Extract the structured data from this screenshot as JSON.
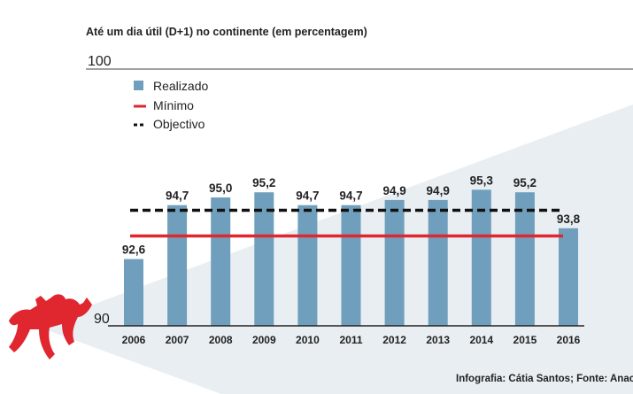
{
  "chart_data": {
    "type": "bar",
    "subtitle": "Até um dia útil (D+1) no continente (em percentagem)",
    "categories": [
      "2006",
      "2007",
      "2008",
      "2009",
      "2010",
      "2011",
      "2012",
      "2013",
      "2014",
      "2015",
      "2016"
    ],
    "series": [
      {
        "name": "Realizado",
        "values": [
          92.6,
          94.7,
          95.0,
          95.2,
          94.7,
          94.7,
          94.9,
          94.9,
          95.3,
          95.2,
          93.8
        ]
      }
    ],
    "value_labels": [
      "92,6",
      "94,7",
      "95,0",
      "95,2",
      "94,7",
      "94,7",
      "94,9",
      "94,9",
      "95,3",
      "95,2",
      "93,8"
    ],
    "reference_lines": [
      {
        "name": "Mínimo",
        "value": 93.5,
        "style": "solid",
        "color": "#e0262f"
      },
      {
        "name": "Objectivo",
        "value": 94.5,
        "style": "dashed",
        "color": "#111111"
      }
    ],
    "ylim": [
      90,
      100
    ],
    "ytick_labels": {
      "min": "90",
      "max": "100"
    },
    "legend": {
      "position": "top-left",
      "entries": [
        {
          "label": "Realizado",
          "marker": "square",
          "color": "#6f9fbc"
        },
        {
          "label": "Mínimo",
          "marker": "solid-line",
          "color": "#e0262f"
        },
        {
          "label": "Objectivo",
          "marker": "dashed-line",
          "color": "#111111"
        }
      ]
    },
    "bar_color": "#6f9fbc",
    "credit": "Infografia: Cátia Santos; Fonte: Anacom"
  },
  "colors": {
    "background_triangle": "#e8eef2",
    "logo_red": "#e0262f"
  }
}
